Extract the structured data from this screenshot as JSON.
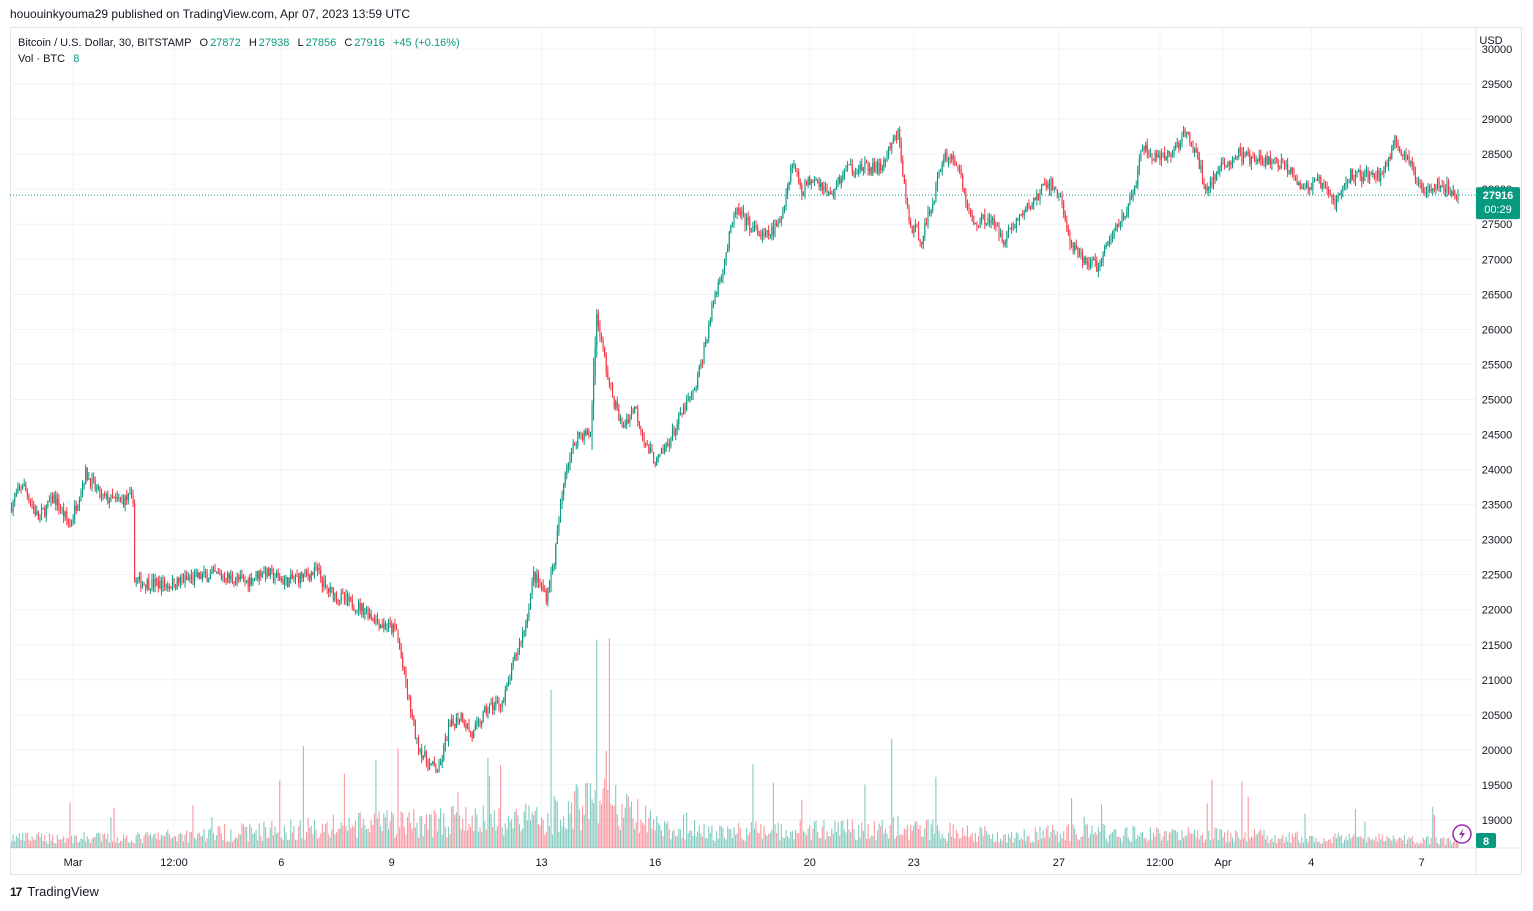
{
  "header": {
    "published": "hououinkyouma29 published on TradingView.com, Apr 07, 2023 13:59 UTC"
  },
  "legend": {
    "symbol": "Bitcoin / U.S. Dollar, 30, BITSTAMP",
    "open_label": "O",
    "open": "27872",
    "high_label": "H",
    "high": "27938",
    "low_label": "L",
    "low": "27856",
    "close_label": "C",
    "close": "27916",
    "change": "+45 (+0.16%)",
    "vol_label": "Vol · BTC",
    "vol_value": "8"
  },
  "price_scale": {
    "currency": "USD",
    "last_price": "27916",
    "countdown": "00:29",
    "volume_badge": "8"
  },
  "footer": {
    "brand": "TradingView"
  },
  "colors": {
    "up": "#089981",
    "down": "#f23645",
    "grid": "#f0f3fa",
    "badge": "#089981"
  },
  "chart_data": {
    "type": "candlestick",
    "symbol": "BTCUSD",
    "interval": "30",
    "ylim": [
      18600,
      30300
    ],
    "y_ticks": [
      19000,
      19500,
      20000,
      20500,
      21000,
      21500,
      22000,
      22500,
      23000,
      23500,
      24000,
      24500,
      25000,
      25500,
      26000,
      26500,
      27000,
      27500,
      28000,
      28500,
      29000,
      29500,
      30000
    ],
    "x_tick_labels": [
      "Mar",
      "12:00",
      "6",
      "9",
      "13",
      "16",
      "20",
      "23",
      "27",
      "12:00",
      "Apr",
      "4",
      "7"
    ],
    "x_tick_index": [
      40,
      104,
      172,
      242,
      337,
      409,
      507,
      573,
      665,
      729,
      769,
      825,
      895
    ],
    "last_price": 27916,
    "price_path": [
      [
        0,
        23450
      ],
      [
        8,
        23800
      ],
      [
        18,
        23300
      ],
      [
        28,
        23600
      ],
      [
        38,
        23200
      ],
      [
        48,
        23950
      ],
      [
        58,
        23600
      ],
      [
        68,
        23550
      ],
      [
        78,
        23600
      ],
      [
        79,
        22400
      ],
      [
        100,
        22350
      ],
      [
        115,
        22450
      ],
      [
        130,
        22500
      ],
      [
        150,
        22400
      ],
      [
        160,
        22550
      ],
      [
        175,
        22400
      ],
      [
        195,
        22550
      ],
      [
        200,
        22300
      ],
      [
        215,
        22100
      ],
      [
        225,
        22000
      ],
      [
        235,
        21800
      ],
      [
        245,
        21700
      ],
      [
        252,
        20800
      ],
      [
        258,
        20100
      ],
      [
        265,
        19800
      ],
      [
        272,
        19700
      ],
      [
        278,
        20300
      ],
      [
        286,
        20500
      ],
      [
        293,
        20200
      ],
      [
        303,
        20600
      ],
      [
        313,
        20700
      ],
      [
        320,
        21300
      ],
      [
        327,
        21800
      ],
      [
        332,
        22500
      ],
      [
        340,
        22200
      ],
      [
        345,
        22700
      ],
      [
        352,
        24000
      ],
      [
        360,
        24500
      ],
      [
        368,
        24500
      ],
      [
        372,
        26200
      ],
      [
        380,
        25200
      ],
      [
        388,
        24600
      ],
      [
        396,
        24900
      ],
      [
        404,
        24300
      ],
      [
        410,
        24100
      ],
      [
        420,
        24500
      ],
      [
        428,
        24900
      ],
      [
        434,
        25100
      ],
      [
        440,
        25700
      ],
      [
        446,
        26400
      ],
      [
        452,
        26900
      ],
      [
        460,
        27700
      ],
      [
        468,
        27500
      ],
      [
        478,
        27300
      ],
      [
        488,
        27500
      ],
      [
        496,
        28400
      ],
      [
        502,
        28000
      ],
      [
        510,
        28200
      ],
      [
        520,
        27900
      ],
      [
        530,
        28300
      ],
      [
        540,
        28300
      ],
      [
        552,
        28300
      ],
      [
        563,
        28800
      ],
      [
        570,
        27500
      ],
      [
        578,
        27300
      ],
      [
        586,
        27900
      ],
      [
        592,
        28500
      ],
      [
        600,
        28400
      ],
      [
        610,
        27500
      ],
      [
        620,
        27600
      ],
      [
        630,
        27300
      ],
      [
        640,
        27600
      ],
      [
        648,
        27800
      ],
      [
        658,
        28100
      ],
      [
        666,
        27900
      ],
      [
        672,
        27200
      ],
      [
        680,
        27000
      ],
      [
        690,
        26900
      ],
      [
        700,
        27400
      ],
      [
        712,
        27900
      ],
      [
        718,
        28600
      ],
      [
        728,
        28400
      ],
      [
        736,
        28500
      ],
      [
        745,
        28800
      ],
      [
        752,
        28500
      ],
      [
        758,
        28000
      ],
      [
        768,
        28300
      ],
      [
        778,
        28500
      ],
      [
        790,
        28400
      ],
      [
        800,
        28400
      ],
      [
        812,
        28300
      ],
      [
        820,
        28000
      ],
      [
        830,
        28100
      ],
      [
        840,
        27800
      ],
      [
        850,
        28200
      ],
      [
        860,
        28200
      ],
      [
        870,
        28200
      ],
      [
        878,
        28700
      ],
      [
        886,
        28400
      ],
      [
        895,
        28000
      ],
      [
        905,
        28100
      ],
      [
        912,
        28000
      ],
      [
        918,
        27916
      ]
    ],
    "volume_path": [
      [
        0,
        1
      ],
      [
        79,
        1
      ],
      [
        252,
        2.5
      ],
      [
        340,
        3
      ],
      [
        372,
        5
      ],
      [
        420,
        1.5
      ],
      [
        570,
        2
      ],
      [
        640,
        1.2
      ],
      [
        672,
        1.6
      ],
      [
        900,
        0.8
      ],
      [
        918,
        0.6
      ]
    ],
    "grid": true
  }
}
